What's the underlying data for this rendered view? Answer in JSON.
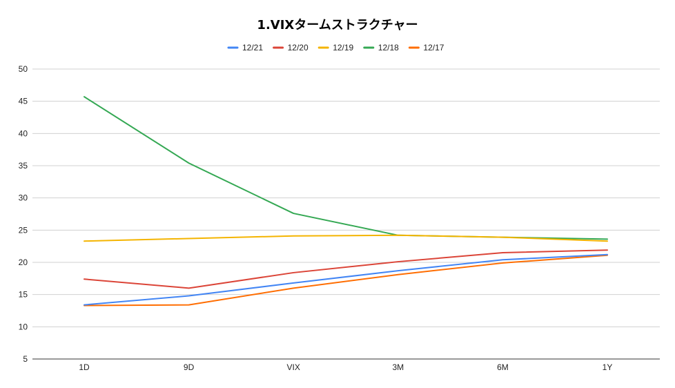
{
  "chart_data": {
    "type": "line",
    "title": "1.VIXタームストラクチャー",
    "xlabel": "",
    "ylabel": "",
    "categories": [
      "1D",
      "9D",
      "VIX",
      "3M",
      "6M",
      "1Y"
    ],
    "ylim": [
      5,
      50
    ],
    "yticks": [
      5,
      10,
      15,
      20,
      25,
      30,
      35,
      40,
      45,
      50
    ],
    "grid": true,
    "legend_position": "top",
    "series": [
      {
        "name": "12/21",
        "color": "#4285f4",
        "values": [
          13.4,
          14.8,
          16.8,
          18.7,
          20.4,
          21.2
        ]
      },
      {
        "name": "12/20",
        "color": "#db4437",
        "values": [
          17.4,
          16.0,
          18.4,
          20.1,
          21.5,
          21.9
        ]
      },
      {
        "name": "12/19",
        "color": "#f4b400",
        "values": [
          23.3,
          23.7,
          24.1,
          24.2,
          23.9,
          23.3
        ]
      },
      {
        "name": "12/18",
        "color": "#34a853",
        "values": [
          45.7,
          35.4,
          27.6,
          24.2,
          23.9,
          23.6
        ]
      },
      {
        "name": "12/17",
        "color": "#ff6d01",
        "values": [
          13.3,
          13.4,
          16.0,
          18.1,
          19.9,
          21.1
        ]
      }
    ]
  }
}
